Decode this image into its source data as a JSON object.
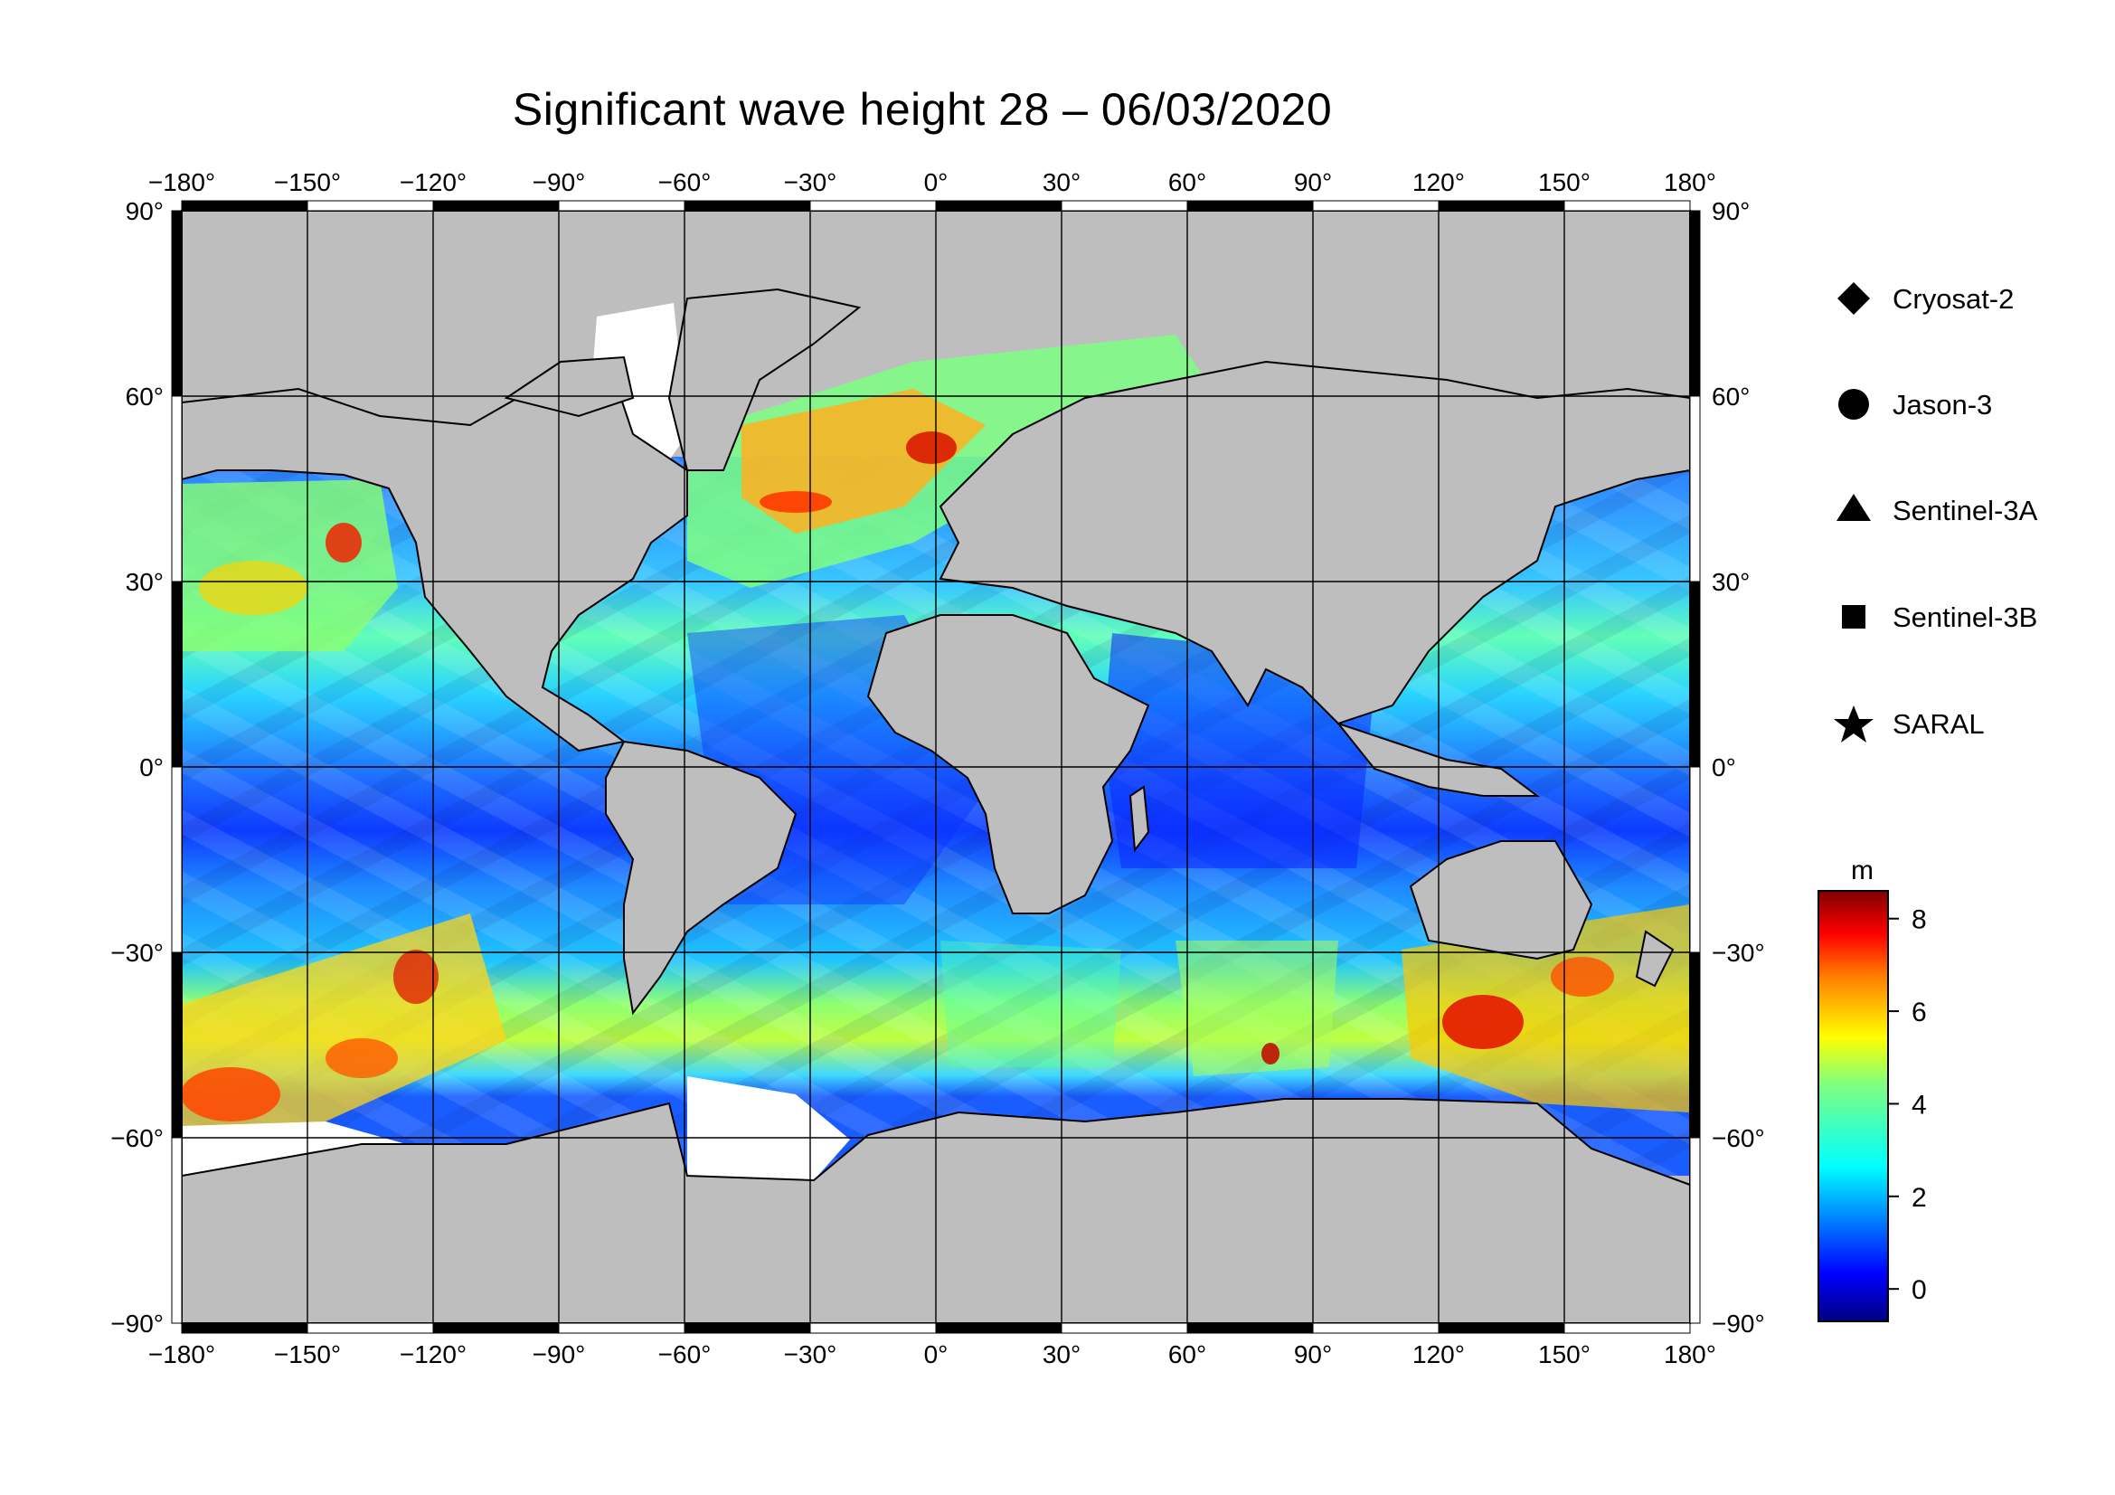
{
  "title": "Significant wave height 28 – 06/03/2020",
  "map": {
    "lon_range": [
      -180,
      180
    ],
    "lat_range": [
      -90,
      90
    ],
    "lon_ticks": [
      "−180°",
      "−150°",
      "−120°",
      "−90°",
      "−60°",
      "−30°",
      "0°",
      "30°",
      "60°",
      "90°",
      "120°",
      "150°",
      "180°"
    ],
    "lat_ticks_left": [
      "90°",
      "60°",
      "30°",
      "0°",
      "−30°",
      "−60°",
      "−90°"
    ],
    "lat_ticks_right": [
      "90°",
      "60°",
      "30°",
      "0°",
      "−30°",
      "−60°",
      "−90°"
    ],
    "land_color": "#bebebe",
    "ice_color": "#ffffff",
    "grid": true
  },
  "legend": {
    "items": [
      {
        "label": "Cryosat-2",
        "symbol": "diamond-icon"
      },
      {
        "label": "Jason-3",
        "symbol": "circle-icon"
      },
      {
        "label": "Sentinel-3A",
        "symbol": "triangle-icon"
      },
      {
        "label": "Sentinel-3B",
        "symbol": "square-icon"
      },
      {
        "label": "SARAL",
        "symbol": "star-icon"
      }
    ]
  },
  "colorbar": {
    "unit": "m",
    "ticks": [
      "8",
      "6",
      "4",
      "2",
      "0"
    ],
    "min": -0.7,
    "max": 8.6,
    "colormap": [
      "#00007f",
      "#0000ff",
      "#007fff",
      "#00ffff",
      "#7fff7f",
      "#ffff00",
      "#ff7f00",
      "#ff0000",
      "#7f0000"
    ]
  },
  "chart_data": {
    "type": "heatmap",
    "title": "Significant wave height 28 – 06/03/2020",
    "xlim": [
      -180,
      180
    ],
    "ylim": [
      -90,
      90
    ],
    "colorbar_label": "m",
    "colorbar_range": [
      -0.7,
      8.6
    ],
    "series": [
      {
        "name": "Cryosat-2"
      },
      {
        "name": "Jason-3"
      },
      {
        "name": "Sentinel-3A"
      },
      {
        "name": "Sentinel-3B"
      },
      {
        "name": "SARAL"
      }
    ]
  }
}
